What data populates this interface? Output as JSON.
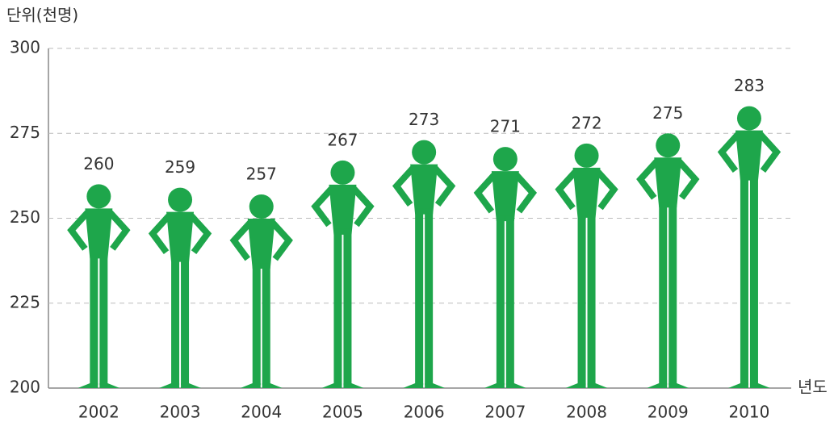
{
  "chart_data": {
    "type": "pictograph",
    "y_axis_label": "단위(천명)",
    "x_axis_label": "년도",
    "categories": [
      "2002",
      "2003",
      "2004",
      "2005",
      "2006",
      "2007",
      "2008",
      "2009",
      "2010"
    ],
    "values": [
      260,
      259,
      257,
      267,
      273,
      271,
      272,
      275,
      283
    ],
    "color": "#1ea64b",
    "ylim": [
      200,
      300
    ],
    "yticks": [
      200,
      225,
      250,
      275,
      300
    ],
    "grid": true
  }
}
